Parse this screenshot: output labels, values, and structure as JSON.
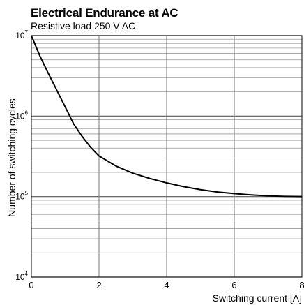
{
  "chart_data": {
    "type": "line",
    "title": "Electrical Endurance at AC",
    "subtitle": "Resistive load 250 V AC",
    "xlabel": "Switching current [A]",
    "ylabel": "Number of switching cycles",
    "xlim": [
      0,
      8
    ],
    "ylim": [
      10000,
      10000000
    ],
    "yscale": "log",
    "grid": true,
    "x_ticks": [
      "0",
      "2",
      "4",
      "6",
      "8"
    ],
    "y_ticks": [
      {
        "base": "10",
        "exp": "4",
        "value": 10000
      },
      {
        "base": "10",
        "exp": "5",
        "value": 100000
      },
      {
        "base": "10",
        "exp": "6",
        "value": 1000000
      },
      {
        "base": "10",
        "exp": "7",
        "value": 10000000
      }
    ],
    "series": [
      {
        "x": [
          0,
          0.25,
          0.5,
          0.75,
          1,
          1.25,
          1.5,
          1.75,
          2,
          2.5,
          3,
          3.5,
          4,
          4.5,
          5,
          5.5,
          6,
          6.5,
          7,
          7.5,
          8
        ],
        "y": [
          10000000,
          5600000,
          3400000,
          2100000,
          1300000,
          800000,
          560000,
          410000,
          320000,
          240000,
          195000,
          168000,
          148000,
          133000,
          122000,
          114000,
          109000,
          105000,
          102000,
          100500,
          100000
        ]
      }
    ]
  }
}
